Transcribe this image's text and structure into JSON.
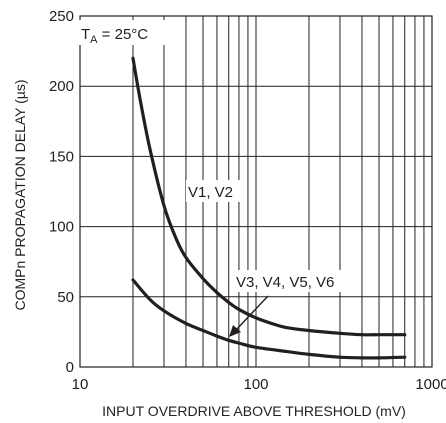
{
  "chart_data": {
    "type": "line",
    "title": "",
    "xlabel": "INPUT OVERDRIVE ABOVE THRESHOLD (mV)",
    "ylabel": "COMPn PROPAGATION DELAY (µs)",
    "x_scale": "log",
    "xlim": [
      10,
      1000
    ],
    "ylim": [
      0,
      250
    ],
    "x_ticks": [
      10,
      100,
      1000
    ],
    "x_tick_labels": [
      "10",
      "100",
      "1000"
    ],
    "y_ticks": [
      0,
      50,
      100,
      150,
      200,
      250
    ],
    "y_tick_labels": [
      "0",
      "50",
      "100",
      "150",
      "200",
      "250"
    ],
    "grid": true,
    "legend": "none",
    "annotations": {
      "ta_prefix": "T",
      "ta_sub": "A",
      "ta_suffix": " = 25°C",
      "v12": "V1, V2",
      "v36": "V3, V4, V5, V6"
    },
    "series": [
      {
        "name": "V1, V2",
        "x": [
          20,
          22,
          25,
          30,
          35,
          40,
          50,
          60,
          70,
          80,
          100,
          130,
          150,
          200,
          300,
          400,
          500,
          700
        ],
        "y": [
          220,
          190,
          155,
          115,
          92,
          78,
          63,
          53,
          46,
          41,
          35,
          30,
          28,
          26,
          24,
          23,
          23,
          23
        ]
      },
      {
        "name": "V3, V4, V5, V6",
        "x": [
          20,
          25,
          30,
          40,
          50,
          60,
          70,
          80,
          100,
          150,
          200,
          300,
          400,
          500,
          700
        ],
        "y": [
          62,
          48,
          40,
          31,
          26,
          22,
          19,
          17,
          14,
          11,
          9,
          7,
          6.5,
          6.5,
          7
        ]
      }
    ]
  }
}
